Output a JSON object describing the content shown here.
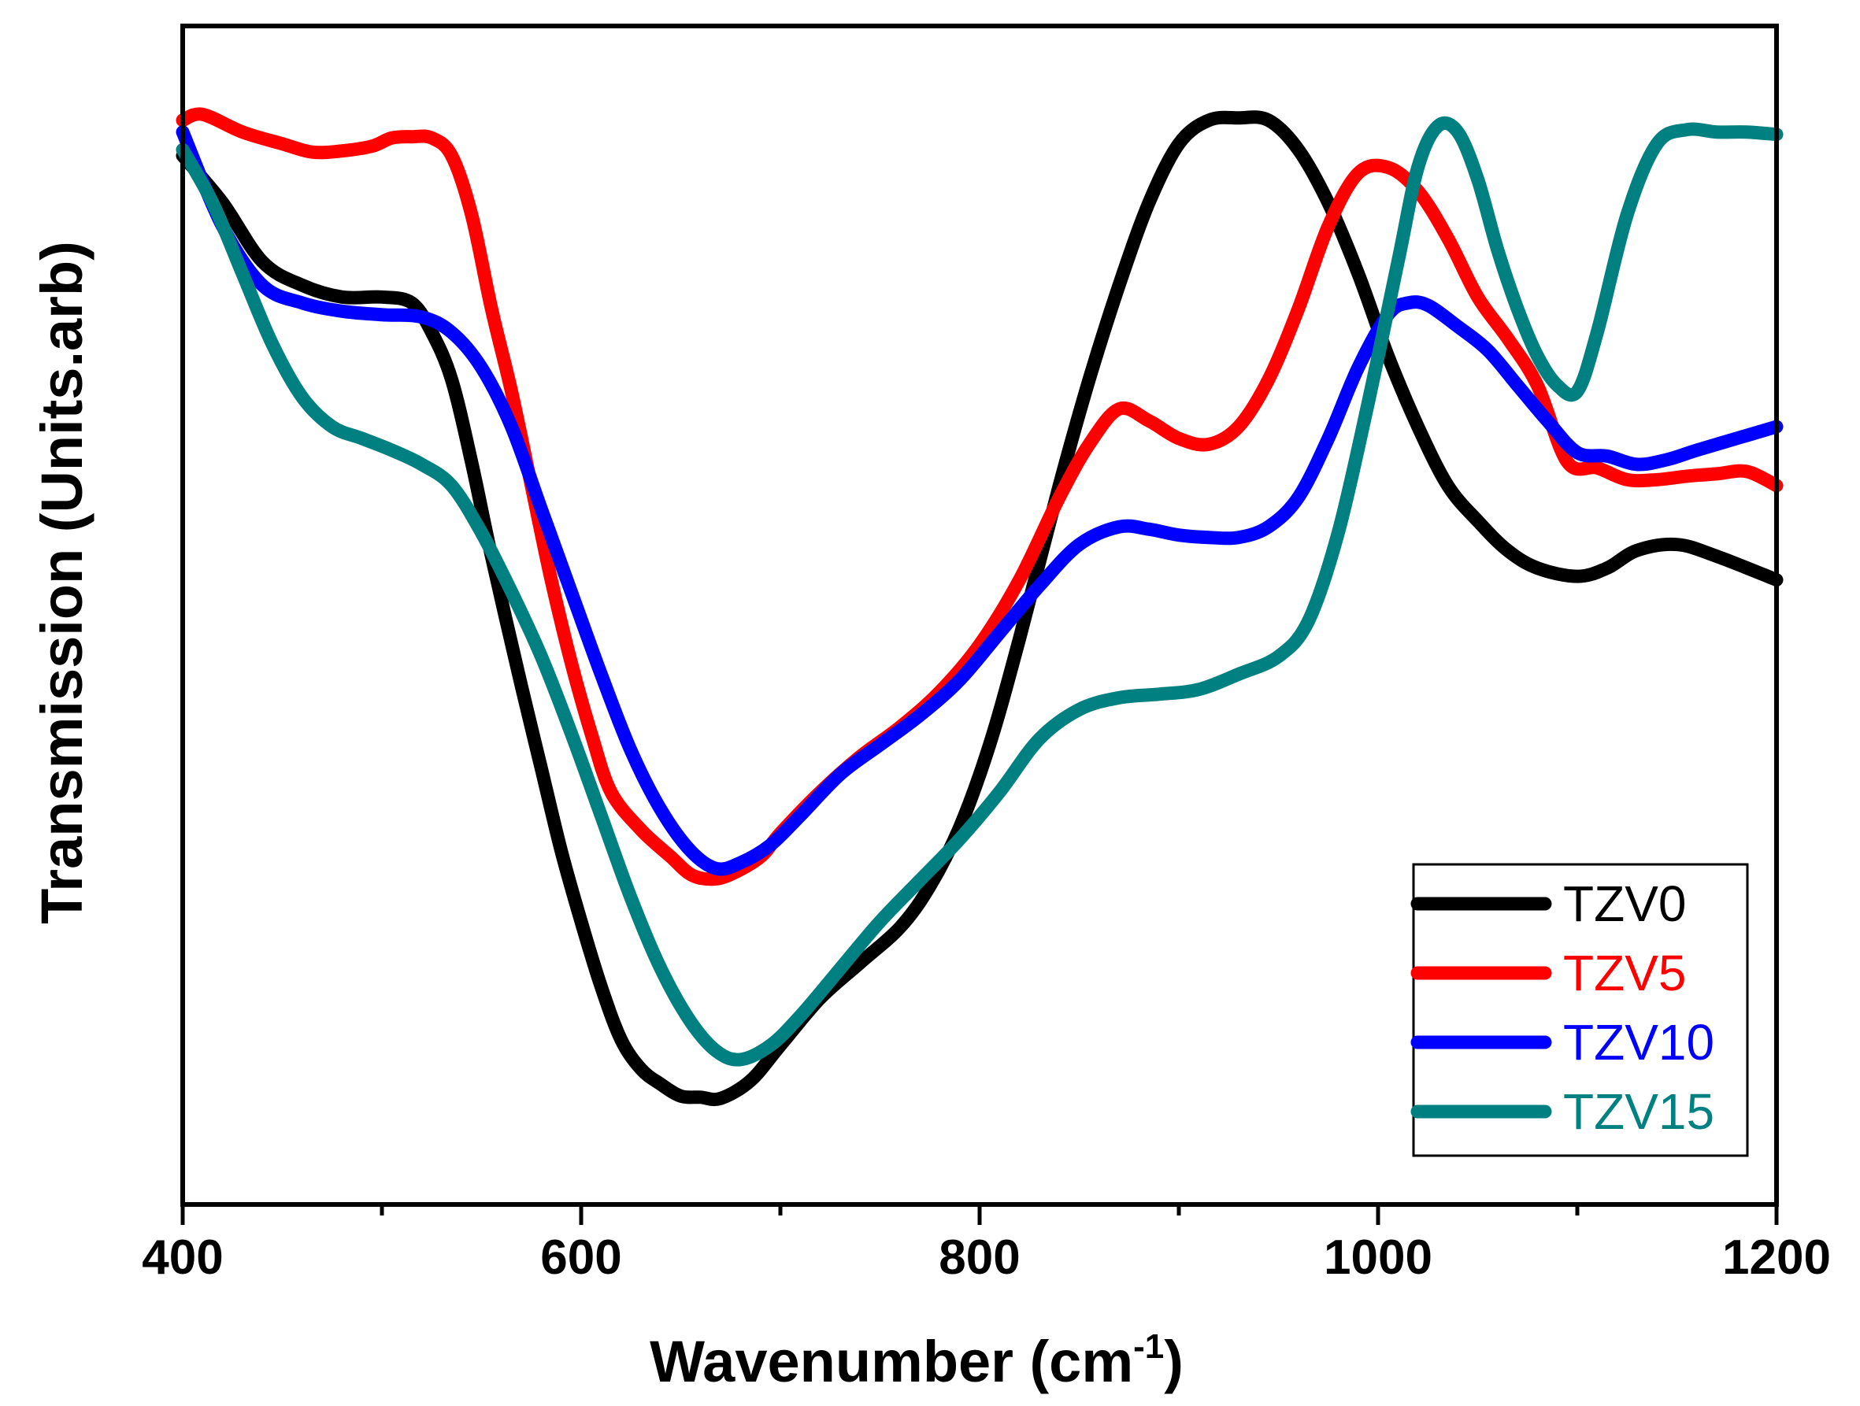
{
  "chart_data": {
    "type": "line",
    "title": "",
    "xlabel_main": "Wavenumber (cm",
    "xlabel_sup": "-1",
    "xlabel_end": ")",
    "ylabel": "Transmission (Units.arb)",
    "xlim": [
      400,
      1200
    ],
    "ylim": [
      0,
      100
    ],
    "x_ticks": [
      400,
      600,
      800,
      1000,
      1200
    ],
    "x_minor_ticks": [
      500,
      700,
      900,
      1100
    ],
    "x_tick_labels": [
      "400",
      "600",
      "800",
      "1000",
      "1200"
    ],
    "legend_position": "bottom-right",
    "series": [
      {
        "name": "TZV0",
        "color": "#000000",
        "points": [
          [
            400,
            89
          ],
          [
            420,
            85
          ],
          [
            440,
            80
          ],
          [
            460,
            78
          ],
          [
            480,
            77
          ],
          [
            500,
            77
          ],
          [
            515,
            76.5
          ],
          [
            525,
            74
          ],
          [
            535,
            70
          ],
          [
            545,
            63
          ],
          [
            555,
            55
          ],
          [
            570,
            44
          ],
          [
            580,
            37
          ],
          [
            590,
            30
          ],
          [
            600,
            24
          ],
          [
            610,
            18.5
          ],
          [
            620,
            14
          ],
          [
            630,
            11.5
          ],
          [
            640,
            10.2
          ],
          [
            650,
            9.2
          ],
          [
            660,
            9.1
          ],
          [
            670,
            9.0
          ],
          [
            685,
            10.5
          ],
          [
            700,
            13.5
          ],
          [
            720,
            17.5
          ],
          [
            740,
            20.5
          ],
          [
            760,
            23.5
          ],
          [
            775,
            27
          ],
          [
            790,
            32
          ],
          [
            805,
            39
          ],
          [
            820,
            48
          ],
          [
            840,
            61
          ],
          [
            855,
            70
          ],
          [
            870,
            78
          ],
          [
            885,
            85
          ],
          [
            900,
            90
          ],
          [
            915,
            92
          ],
          [
            930,
            92.2
          ],
          [
            945,
            92
          ],
          [
            960,
            89.5
          ],
          [
            975,
            85
          ],
          [
            990,
            79
          ],
          [
            1005,
            72
          ],
          [
            1020,
            66
          ],
          [
            1035,
            61
          ],
          [
            1050,
            58
          ],
          [
            1065,
            55.5
          ],
          [
            1080,
            54
          ],
          [
            1100,
            53.3
          ],
          [
            1115,
            54
          ],
          [
            1130,
            55.5
          ],
          [
            1150,
            56
          ],
          [
            1170,
            55
          ],
          [
            1200,
            53
          ]
        ]
      },
      {
        "name": "TZV5",
        "color": "#ff0000",
        "points": [
          [
            400,
            92
          ],
          [
            410,
            92.5
          ],
          [
            430,
            91
          ],
          [
            450,
            90
          ],
          [
            465,
            89.3
          ],
          [
            480,
            89.4
          ],
          [
            495,
            89.8
          ],
          [
            505,
            90.5
          ],
          [
            515,
            90.6
          ],
          [
            525,
            90.5
          ],
          [
            535,
            89
          ],
          [
            545,
            84
          ],
          [
            555,
            76
          ],
          [
            565,
            69
          ],
          [
            575,
            61
          ],
          [
            585,
            53
          ],
          [
            595,
            46
          ],
          [
            605,
            40
          ],
          [
            615,
            35
          ],
          [
            630,
            31.8
          ],
          [
            645,
            29.5
          ],
          [
            655,
            28
          ],
          [
            665,
            27.6
          ],
          [
            675,
            28
          ],
          [
            690,
            29.5
          ],
          [
            700,
            31.5
          ],
          [
            720,
            35
          ],
          [
            740,
            38
          ],
          [
            760,
            40.5
          ],
          [
            780,
            43.5
          ],
          [
            800,
            47.5
          ],
          [
            820,
            53
          ],
          [
            840,
            60
          ],
          [
            855,
            64.5
          ],
          [
            870,
            67.5
          ],
          [
            885,
            66.5
          ],
          [
            900,
            65
          ],
          [
            915,
            64.5
          ],
          [
            930,
            66
          ],
          [
            945,
            70
          ],
          [
            960,
            76
          ],
          [
            975,
            83
          ],
          [
            990,
            87.5
          ],
          [
            1005,
            88
          ],
          [
            1020,
            86
          ],
          [
            1035,
            82
          ],
          [
            1050,
            77
          ],
          [
            1065,
            73.5
          ],
          [
            1080,
            69.5
          ],
          [
            1095,
            63
          ],
          [
            1110,
            62.5
          ],
          [
            1125,
            61.5
          ],
          [
            1140,
            61.5
          ],
          [
            1155,
            61.8
          ],
          [
            1170,
            62
          ],
          [
            1185,
            62.2
          ],
          [
            1200,
            61
          ]
        ]
      },
      {
        "name": "TZV10",
        "color": "#0000ff",
        "points": [
          [
            400,
            91
          ],
          [
            420,
            83
          ],
          [
            440,
            78
          ],
          [
            460,
            76.5
          ],
          [
            480,
            75.8
          ],
          [
            500,
            75.5
          ],
          [
            520,
            75.3
          ],
          [
            535,
            74
          ],
          [
            550,
            71
          ],
          [
            565,
            66
          ],
          [
            580,
            59
          ],
          [
            595,
            52
          ],
          [
            610,
            45
          ],
          [
            625,
            38.5
          ],
          [
            640,
            33.5
          ],
          [
            655,
            30
          ],
          [
            668,
            28.5
          ],
          [
            680,
            29
          ],
          [
            695,
            30.5
          ],
          [
            710,
            33
          ],
          [
            730,
            36.5
          ],
          [
            750,
            39
          ],
          [
            770,
            41.5
          ],
          [
            790,
            44.5
          ],
          [
            810,
            48.5
          ],
          [
            830,
            52.5
          ],
          [
            850,
            56
          ],
          [
            870,
            57.5
          ],
          [
            885,
            57.3
          ],
          [
            900,
            56.8
          ],
          [
            915,
            56.6
          ],
          [
            930,
            56.6
          ],
          [
            945,
            57.5
          ],
          [
            960,
            60
          ],
          [
            975,
            65
          ],
          [
            990,
            71
          ],
          [
            1005,
            75.5
          ],
          [
            1015,
            76.5
          ],
          [
            1025,
            76.3
          ],
          [
            1040,
            74.5
          ],
          [
            1055,
            72.5
          ],
          [
            1070,
            69.5
          ],
          [
            1085,
            66.5
          ],
          [
            1100,
            63.8
          ],
          [
            1115,
            63.5
          ],
          [
            1130,
            62.8
          ],
          [
            1145,
            63.2
          ],
          [
            1160,
            64
          ],
          [
            1180,
            65
          ],
          [
            1200,
            66
          ]
        ]
      },
      {
        "name": "TZV15",
        "color": "#008080",
        "points": [
          [
            400,
            89.5
          ],
          [
            415,
            85
          ],
          [
            430,
            79
          ],
          [
            445,
            73
          ],
          [
            460,
            68.5
          ],
          [
            475,
            66
          ],
          [
            490,
            65
          ],
          [
            505,
            64
          ],
          [
            520,
            62.8
          ],
          [
            535,
            61
          ],
          [
            550,
            57
          ],
          [
            565,
            52
          ],
          [
            580,
            46.5
          ],
          [
            595,
            40
          ],
          [
            610,
            33
          ],
          [
            625,
            26
          ],
          [
            640,
            20
          ],
          [
            655,
            15.5
          ],
          [
            668,
            13
          ],
          [
            680,
            12.3
          ],
          [
            695,
            13.5
          ],
          [
            710,
            16
          ],
          [
            730,
            20
          ],
          [
            750,
            24
          ],
          [
            770,
            27.5
          ],
          [
            790,
            31
          ],
          [
            810,
            35
          ],
          [
            830,
            39.5
          ],
          [
            850,
            42
          ],
          [
            870,
            43
          ],
          [
            890,
            43.3
          ],
          [
            910,
            43.7
          ],
          [
            930,
            45
          ],
          [
            950,
            46.5
          ],
          [
            965,
            49.5
          ],
          [
            980,
            57
          ],
          [
            995,
            68
          ],
          [
            1010,
            80
          ],
          [
            1020,
            88
          ],
          [
            1030,
            91.5
          ],
          [
            1040,
            91
          ],
          [
            1050,
            87
          ],
          [
            1060,
            81
          ],
          [
            1070,
            76
          ],
          [
            1080,
            72
          ],
          [
            1090,
            69.5
          ],
          [
            1100,
            69
          ],
          [
            1110,
            74
          ],
          [
            1125,
            84
          ],
          [
            1140,
            90
          ],
          [
            1155,
            91.2
          ],
          [
            1170,
            91
          ],
          [
            1185,
            91
          ],
          [
            1200,
            90.8
          ]
        ]
      }
    ]
  }
}
